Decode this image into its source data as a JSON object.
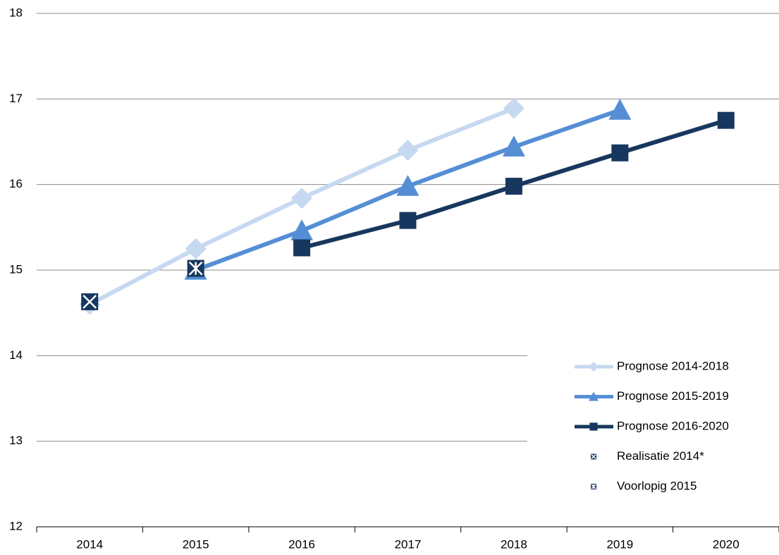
{
  "chart_data": {
    "type": "line",
    "categories": [
      "2014",
      "2015",
      "2016",
      "2017",
      "2018",
      "2019",
      "2020"
    ],
    "ylim": [
      12,
      18
    ],
    "yticks": [
      12,
      13,
      14,
      15,
      16,
      17,
      18
    ],
    "grid": true,
    "legend": "right",
    "series": [
      {
        "name": "Prognose 2014-2018",
        "color": "#c6d9f0",
        "marker": "diamond",
        "values": [
          14.6,
          15.25,
          15.84,
          16.4,
          16.89,
          null,
          null
        ]
      },
      {
        "name": "Prognose 2015-2019",
        "color": "#558ed5",
        "marker": "triangle",
        "values": [
          null,
          15.0,
          15.46,
          15.98,
          16.44,
          16.87,
          null
        ]
      },
      {
        "name": "Prognose 2016-2020",
        "color": "#17375e",
        "marker": "square",
        "values": [
          null,
          null,
          15.26,
          15.58,
          15.98,
          16.37,
          16.75
        ]
      },
      {
        "name": "Realisatie 2014*",
        "color": "#17375e",
        "marker": "xsquare",
        "values": [
          14.63,
          null,
          null,
          null,
          null,
          null,
          null
        ]
      },
      {
        "name": "Voorlopig 2015",
        "color": "#17375e",
        "marker": "asterisk",
        "values": [
          null,
          15.02,
          null,
          null,
          null,
          null,
          null
        ]
      }
    ]
  }
}
